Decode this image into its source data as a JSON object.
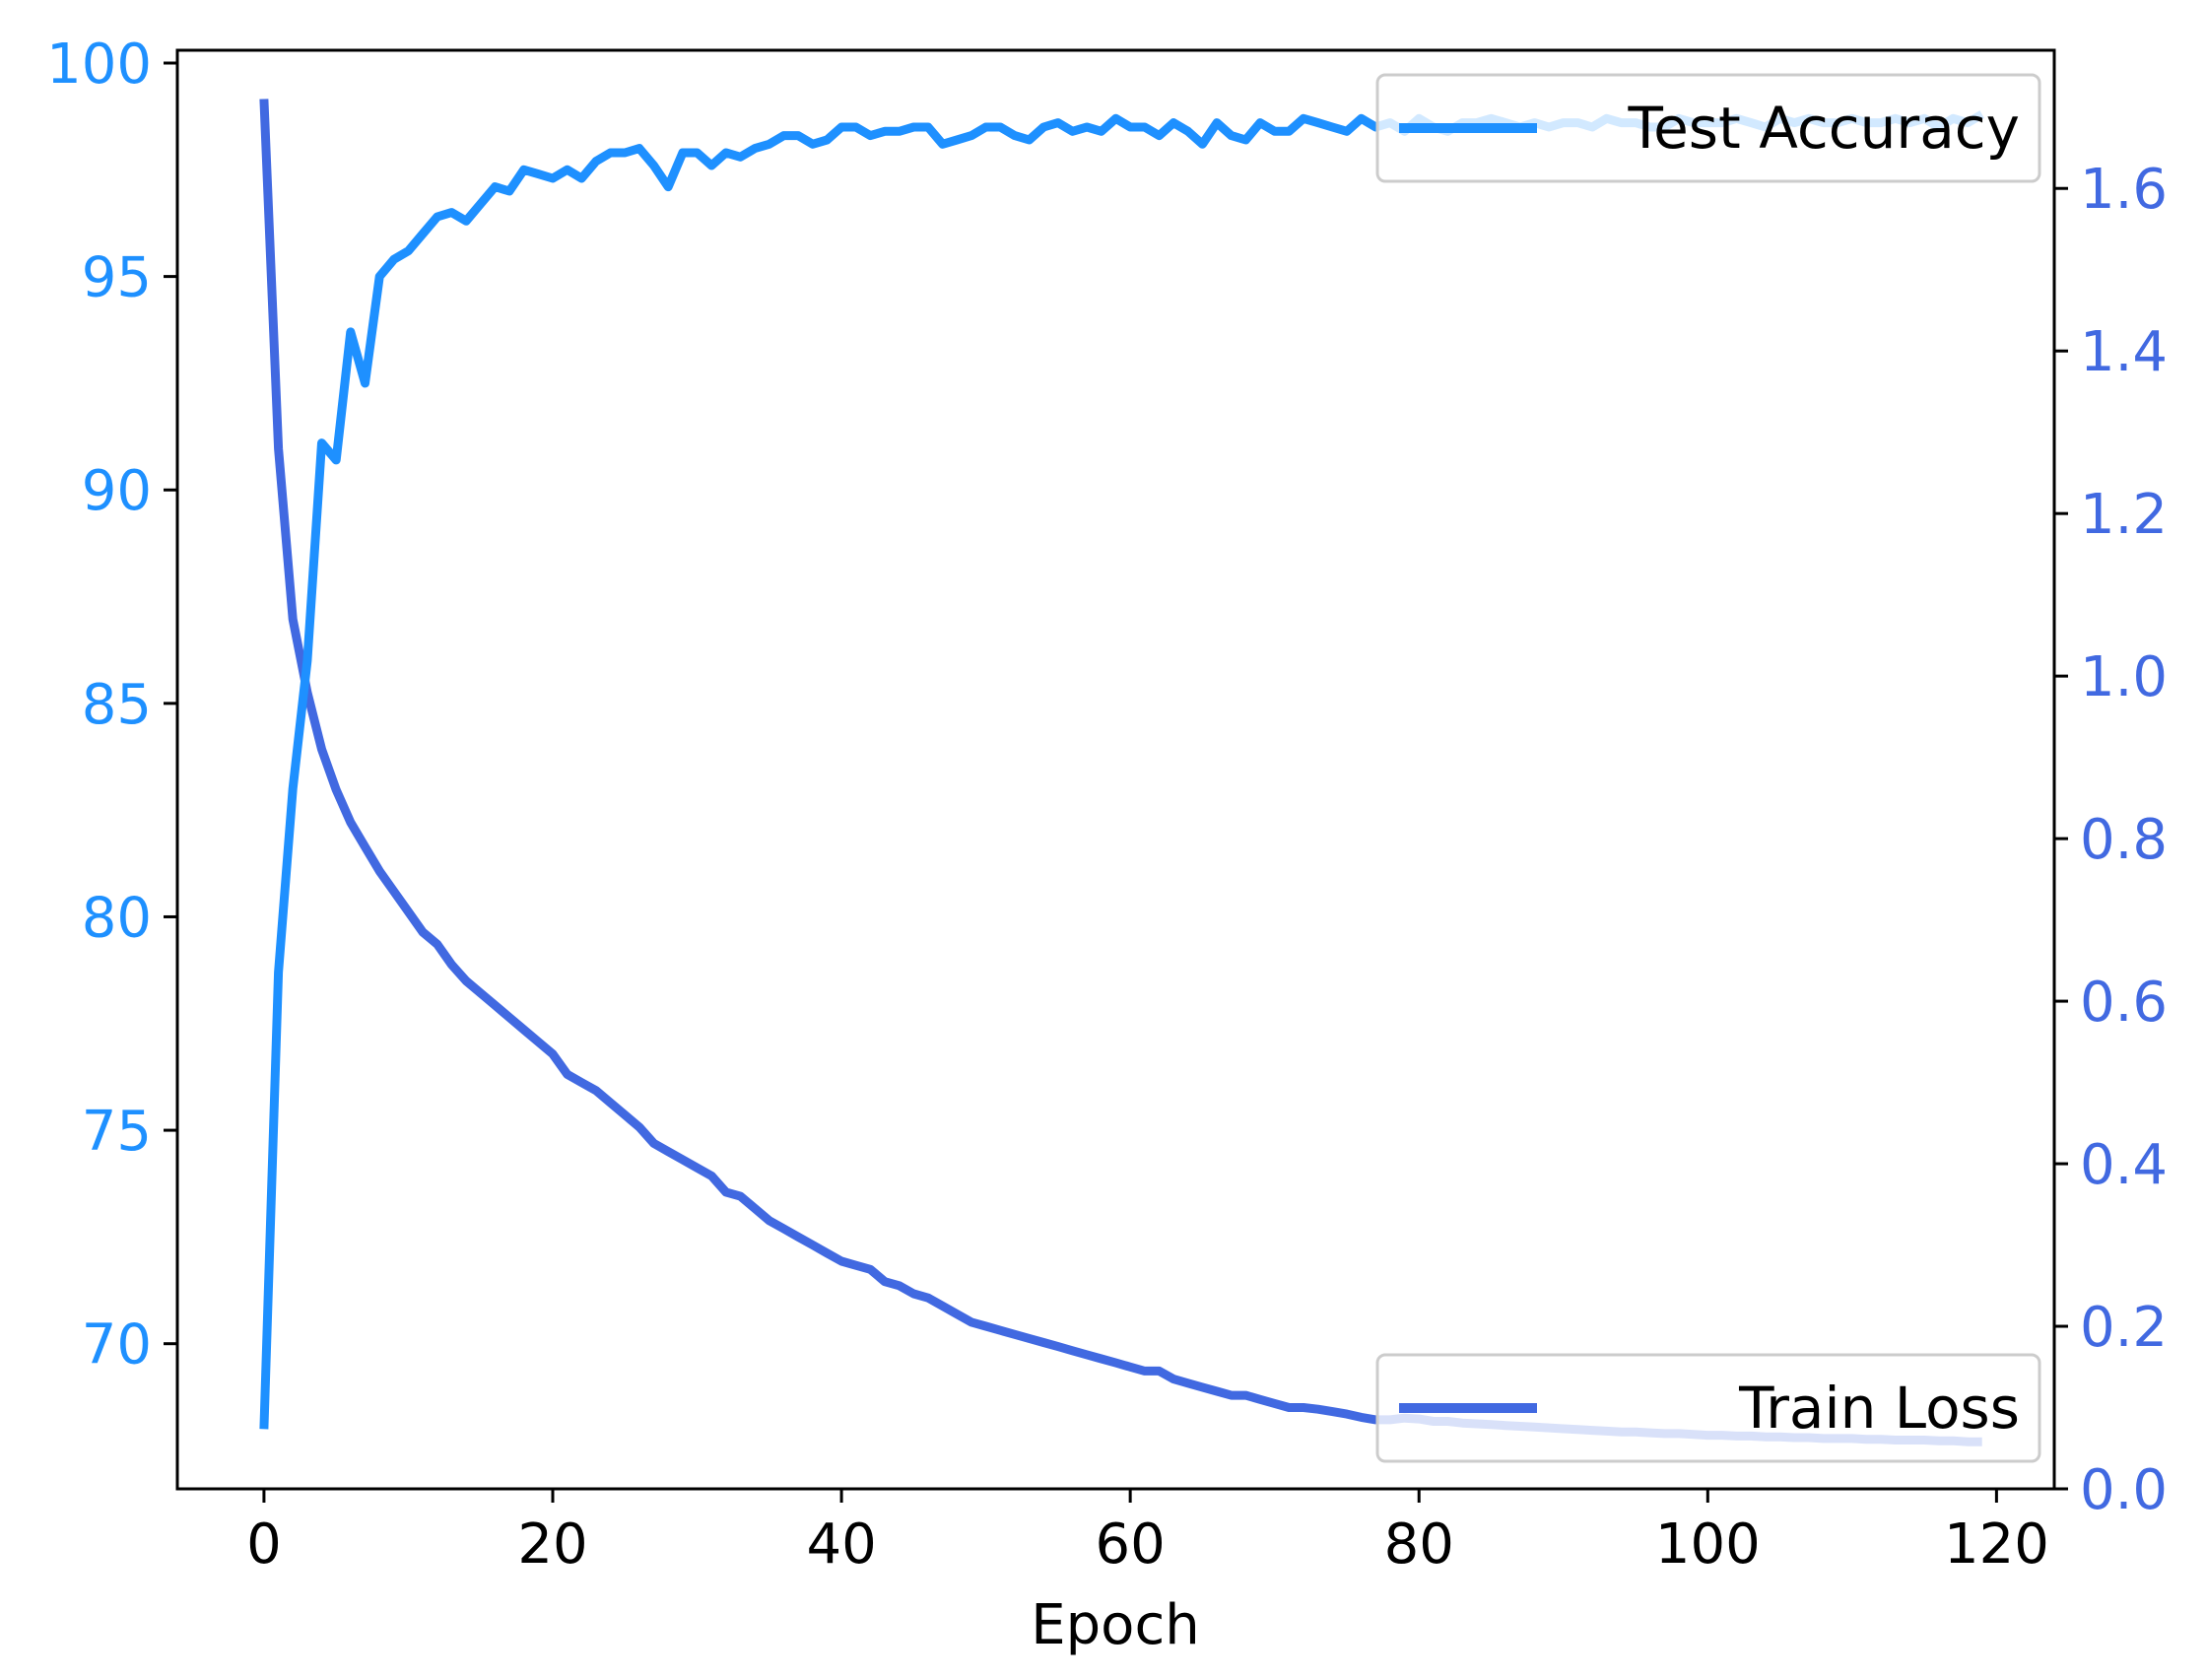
{
  "chart_data": {
    "type": "line",
    "xlabel": "Epoch",
    "xlim": [
      -6,
      124
    ],
    "x_ticks": [
      0,
      20,
      40,
      60,
      80,
      100,
      120
    ],
    "y_left": {
      "lim": [
        66.6,
        100.3
      ],
      "ticks": [
        70,
        75,
        80,
        85,
        90,
        95,
        100
      ],
      "color": "#1e90ff"
    },
    "y_right": {
      "lim": [
        0.0,
        1.77
      ],
      "ticks": [
        "0.0",
        "0.2",
        "0.4",
        "0.6",
        "0.8",
        "1.0",
        "1.2",
        "1.4",
        "1.6"
      ],
      "color": "#4169e1"
    },
    "grid": false,
    "series": [
      {
        "name": "Test Accuracy",
        "axis": "left",
        "color": "#1e90ff",
        "legend_position": "upper right",
        "x": [
          0,
          1,
          2,
          3,
          4,
          5,
          6,
          7,
          8,
          9,
          10,
          11,
          12,
          13,
          14,
          15,
          16,
          17,
          18,
          19,
          20,
          21,
          22,
          23,
          24,
          25,
          26,
          27,
          28,
          29,
          30,
          31,
          32,
          33,
          34,
          35,
          36,
          37,
          38,
          39,
          40,
          41,
          42,
          43,
          44,
          45,
          46,
          47,
          48,
          49,
          50,
          51,
          52,
          53,
          54,
          55,
          56,
          57,
          58,
          59,
          60,
          61,
          62,
          63,
          64,
          65,
          66,
          67,
          68,
          69,
          70,
          71,
          72,
          73,
          74,
          75,
          76,
          77,
          78,
          79,
          80,
          81,
          82,
          83,
          84,
          85,
          86,
          87,
          88,
          89,
          90,
          91,
          92,
          93,
          94,
          95,
          96,
          97,
          98,
          99,
          100,
          101,
          102,
          103,
          104,
          105,
          106,
          107,
          108,
          109,
          110,
          111,
          112,
          113,
          114,
          115,
          116,
          117,
          118,
          119
        ],
        "values": [
          68.0,
          78.7,
          83.0,
          86.0,
          91.1,
          90.7,
          93.7,
          92.5,
          95.0,
          95.4,
          95.6,
          96.0,
          96.4,
          96.5,
          96.3,
          96.7,
          97.1,
          97.0,
          97.5,
          97.4,
          97.3,
          97.5,
          97.3,
          97.7,
          97.9,
          97.9,
          98.0,
          97.6,
          97.1,
          97.9,
          97.9,
          97.6,
          97.9,
          97.8,
          98.0,
          98.1,
          98.3,
          98.3,
          98.1,
          98.2,
          98.5,
          98.5,
          98.3,
          98.4,
          98.4,
          98.5,
          98.5,
          98.1,
          98.2,
          98.3,
          98.5,
          98.5,
          98.3,
          98.2,
          98.5,
          98.6,
          98.4,
          98.5,
          98.4,
          98.7,
          98.5,
          98.5,
          98.3,
          98.6,
          98.4,
          98.1,
          98.6,
          98.3,
          98.2,
          98.6,
          98.4,
          98.4,
          98.7,
          98.6,
          98.5,
          98.4,
          98.7,
          98.5,
          98.6,
          98.4,
          98.7,
          98.5,
          98.4,
          98.6,
          98.6,
          98.7,
          98.6,
          98.5,
          98.6,
          98.5,
          98.6,
          98.6,
          98.5,
          98.7,
          98.6,
          98.6,
          98.5,
          98.5,
          98.7,
          98.6,
          98.6,
          98.6,
          98.7,
          98.6,
          98.5,
          98.7,
          98.6,
          98.7,
          98.6,
          98.6,
          98.7,
          98.6,
          98.6,
          98.7,
          98.6,
          98.7,
          98.5,
          98.7,
          98.6,
          98.8
        ]
      },
      {
        "name": "Train Loss",
        "axis": "right",
        "color": "#4169e1",
        "legend_position": "lower right",
        "x": [
          0,
          1,
          2,
          3,
          4,
          5,
          6,
          7,
          8,
          9,
          10,
          11,
          12,
          13,
          14,
          15,
          16,
          17,
          18,
          19,
          20,
          21,
          22,
          23,
          24,
          25,
          26,
          27,
          28,
          29,
          30,
          31,
          32,
          33,
          34,
          35,
          36,
          37,
          38,
          39,
          40,
          41,
          42,
          43,
          44,
          45,
          46,
          47,
          48,
          49,
          50,
          51,
          52,
          53,
          54,
          55,
          56,
          57,
          58,
          59,
          60,
          61,
          62,
          63,
          64,
          65,
          66,
          67,
          68,
          69,
          70,
          71,
          72,
          73,
          74,
          75,
          76,
          77,
          78,
          79,
          80,
          81,
          82,
          83,
          84,
          85,
          86,
          87,
          88,
          89,
          90,
          91,
          92,
          93,
          94,
          95,
          96,
          97,
          98,
          99,
          100,
          101,
          102,
          103,
          104,
          105,
          106,
          107,
          108,
          109,
          110,
          111,
          112,
          113,
          114,
          115,
          116,
          117,
          118,
          119
        ],
        "values": [
          1.71,
          1.28,
          1.07,
          0.98,
          0.91,
          0.86,
          0.82,
          0.79,
          0.76,
          0.735,
          0.71,
          0.685,
          0.67,
          0.645,
          0.625,
          0.61,
          0.595,
          0.58,
          0.565,
          0.55,
          0.535,
          0.51,
          0.5,
          0.49,
          0.475,
          0.46,
          0.445,
          0.425,
          0.415,
          0.405,
          0.395,
          0.385,
          0.365,
          0.36,
          0.345,
          0.33,
          0.32,
          0.31,
          0.3,
          0.29,
          0.28,
          0.275,
          0.27,
          0.255,
          0.25,
          0.24,
          0.235,
          0.225,
          0.215,
          0.205,
          0.2,
          0.195,
          0.19,
          0.185,
          0.18,
          0.175,
          0.17,
          0.165,
          0.16,
          0.155,
          0.15,
          0.145,
          0.145,
          0.135,
          0.13,
          0.125,
          0.12,
          0.115,
          0.115,
          0.11,
          0.105,
          0.1,
          0.1,
          0.098,
          0.095,
          0.092,
          0.088,
          0.085,
          0.085,
          0.087,
          0.086,
          0.083,
          0.083,
          0.081,
          0.08,
          0.079,
          0.078,
          0.077,
          0.076,
          0.075,
          0.074,
          0.073,
          0.072,
          0.071,
          0.07,
          0.07,
          0.069,
          0.068,
          0.068,
          0.067,
          0.066,
          0.066,
          0.065,
          0.065,
          0.064,
          0.064,
          0.063,
          0.063,
          0.062,
          0.062,
          0.062,
          0.061,
          0.061,
          0.06,
          0.06,
          0.06,
          0.059,
          0.059,
          0.058,
          0.058
        ]
      }
    ]
  }
}
